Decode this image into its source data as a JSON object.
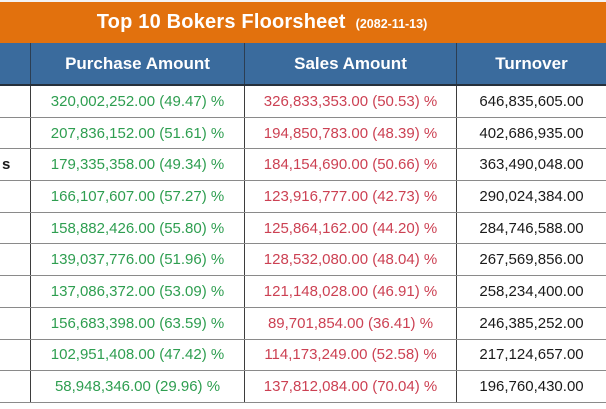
{
  "title": {
    "text": "Top 10 Bokers Floorsheet",
    "date": "(2082-11-13)"
  },
  "colors": {
    "orange": "#e2710d",
    "header_blue": "#3a6b9d",
    "purchase_green": "#2e9e50",
    "sales_red": "#cc4153",
    "turnover_black": "#1a1a1a"
  },
  "table": {
    "headers": {
      "name": "",
      "purchase": "Purchase Amount",
      "sales": "Sales Amount",
      "turnover": "Turnover"
    },
    "rows": [
      {
        "name": "",
        "purchase": "320,002,252.00 (49.47) %",
        "sales": "326,833,353.00 (50.53) %",
        "turnover": "646,835,605.00"
      },
      {
        "name": "",
        "purchase": "207,836,152.00 (51.61) %",
        "sales": "194,850,783.00 (48.39) %",
        "turnover": "402,686,935.00"
      },
      {
        "name": "s",
        "purchase": "179,335,358.00 (49.34) %",
        "sales": "184,154,690.00 (50.66) %",
        "turnover": "363,490,048.00"
      },
      {
        "name": "",
        "purchase": "166,107,607.00 (57.27) %",
        "sales": "123,916,777.00 (42.73) %",
        "turnover": "290,024,384.00"
      },
      {
        "name": "",
        "purchase": "158,882,426.00 (55.80) %",
        "sales": "125,864,162.00 (44.20) %",
        "turnover": "284,746,588.00"
      },
      {
        "name": "",
        "purchase": "139,037,776.00 (51.96) %",
        "sales": "128,532,080.00 (48.04) %",
        "turnover": "267,569,856.00"
      },
      {
        "name": "",
        "purchase": "137,086,372.00 (53.09) %",
        "sales": "121,148,028.00 (46.91) %",
        "turnover": "258,234,400.00"
      },
      {
        "name": "",
        "purchase": "156,683,398.00 (63.59) %",
        "sales": "89,701,854.00 (36.41) %",
        "turnover": "246,385,252.00"
      },
      {
        "name": "",
        "purchase": "102,951,408.00 (47.42) %",
        "sales": "114,173,249.00 (52.58) %",
        "turnover": "217,124,657.00"
      },
      {
        "name": "",
        "purchase": "58,948,346.00 (29.96) %",
        "sales": "137,812,084.00 (70.04) %",
        "turnover": "196,760,430.00"
      }
    ]
  }
}
